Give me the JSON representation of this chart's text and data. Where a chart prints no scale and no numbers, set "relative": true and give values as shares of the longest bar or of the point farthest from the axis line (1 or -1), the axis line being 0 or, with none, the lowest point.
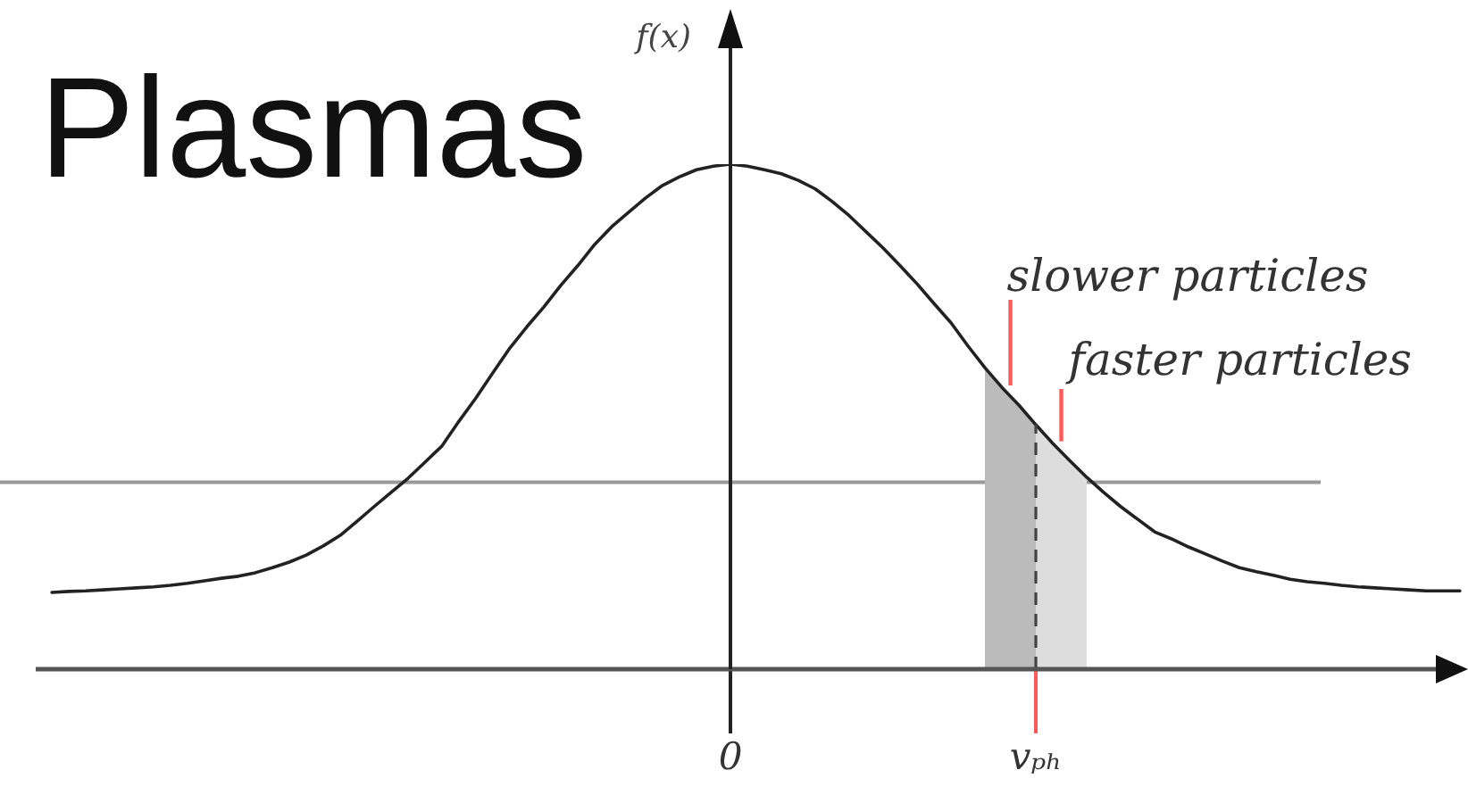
{
  "chart_data": {
    "type": "line",
    "title": "Plasmas",
    "ylabel": "f(x)",
    "relative": true,
    "marker": "none",
    "categories": [
      null,
      null,
      null,
      null,
      null,
      null,
      null,
      null,
      null,
      null,
      null,
      null,
      null,
      null,
      null,
      null,
      null,
      null,
      null,
      null,
      null,
      null,
      null,
      null,
      null,
      null,
      null,
      null,
      null,
      null,
      null,
      null,
      null,
      null,
      null,
      null,
      null,
      null,
      null,
      null,
      "0",
      null,
      null,
      null,
      null,
      null,
      null,
      null,
      null,
      null,
      null,
      null,
      null,
      null,
      null,
      null,
      null,
      null,
      "vₚₕ",
      null,
      null,
      null,
      null,
      null,
      null,
      null,
      null,
      null,
      null,
      null,
      null,
      null,
      null,
      null,
      null,
      null,
      null,
      null,
      null,
      null,
      null,
      null,
      null,
      null
    ],
    "series": [
      {
        "color": "#222222",
        "values": [
          0.152,
          0.154,
          0.155,
          0.157,
          0.159,
          0.161,
          0.163,
          0.166,
          0.17,
          0.175,
          0.18,
          0.184,
          0.191,
          0.201,
          0.212,
          0.226,
          0.244,
          0.265,
          0.293,
          0.322,
          0.35,
          0.378,
          0.41,
          0.442,
          0.491,
          0.537,
          0.587,
          0.636,
          0.678,
          0.717,
          0.76,
          0.799,
          0.841,
          0.876,
          0.905,
          0.933,
          0.958,
          0.975,
          0.989,
          0.996,
          1,
          0.996,
          0.989,
          0.981,
          0.968,
          0.951,
          0.926,
          0.898,
          0.866,
          0.834,
          0.799,
          0.763,
          0.724,
          0.686,
          0.64,
          0.597,
          0.558,
          0.523,
          0.484,
          0.447,
          0.413,
          0.38,
          0.35,
          0.322,
          0.297,
          0.272,
          0.258,
          0.242,
          0.228,
          0.214,
          0.201,
          0.193,
          0.186,
          0.178,
          0.173,
          0.17,
          0.166,
          0.163,
          0.161,
          0.159,
          0.157,
          0.155,
          0.155,
          0.155
        ]
      },
      {
        "type": "area",
        "color": "#bbbbbb",
        "values": [
          null,
          null,
          null,
          null,
          null,
          null,
          null,
          null,
          null,
          null,
          null,
          null,
          null,
          null,
          null,
          null,
          null,
          null,
          null,
          null,
          null,
          null,
          null,
          null,
          null,
          null,
          null,
          null,
          null,
          null,
          null,
          null,
          null,
          null,
          null,
          null,
          null,
          null,
          null,
          null,
          null,
          null,
          null,
          null,
          null,
          null,
          null,
          null,
          null,
          null,
          null,
          null,
          null,
          null,
          null,
          0.597,
          0.558,
          0.523,
          0.484,
          null,
          null,
          null,
          null,
          null,
          null,
          null,
          null,
          null,
          null,
          null,
          null,
          null,
          null,
          null,
          null,
          null,
          null,
          null,
          null,
          null,
          null,
          null,
          null,
          null
        ]
      },
      {
        "type": "area",
        "color": "#dddddd",
        "values": [
          null,
          null,
          null,
          null,
          null,
          null,
          null,
          null,
          null,
          null,
          null,
          null,
          null,
          null,
          null,
          null,
          null,
          null,
          null,
          null,
          null,
          null,
          null,
          null,
          null,
          null,
          null,
          null,
          null,
          null,
          null,
          null,
          null,
          null,
          null,
          null,
          null,
          null,
          null,
          null,
          null,
          null,
          null,
          null,
          null,
          null,
          null,
          null,
          null,
          null,
          null,
          null,
          null,
          null,
          null,
          null,
          null,
          null,
          0.484,
          0.447,
          0.413,
          0.38,
          null,
          null,
          null,
          null,
          null,
          null,
          null,
          null,
          null,
          null,
          null,
          null,
          null,
          null,
          null,
          null,
          null,
          null,
          null,
          null,
          null,
          null
        ]
      }
    ],
    "ref_lines": [
      {
        "axis": "y",
        "value": 0.37,
        "color": "#999999"
      },
      {
        "axis": "x",
        "value": "vₚₕ",
        "color": "#444444",
        "line_style": "dashed"
      }
    ],
    "annotations": [
      "slower particles",
      "faster particles"
    ]
  }
}
